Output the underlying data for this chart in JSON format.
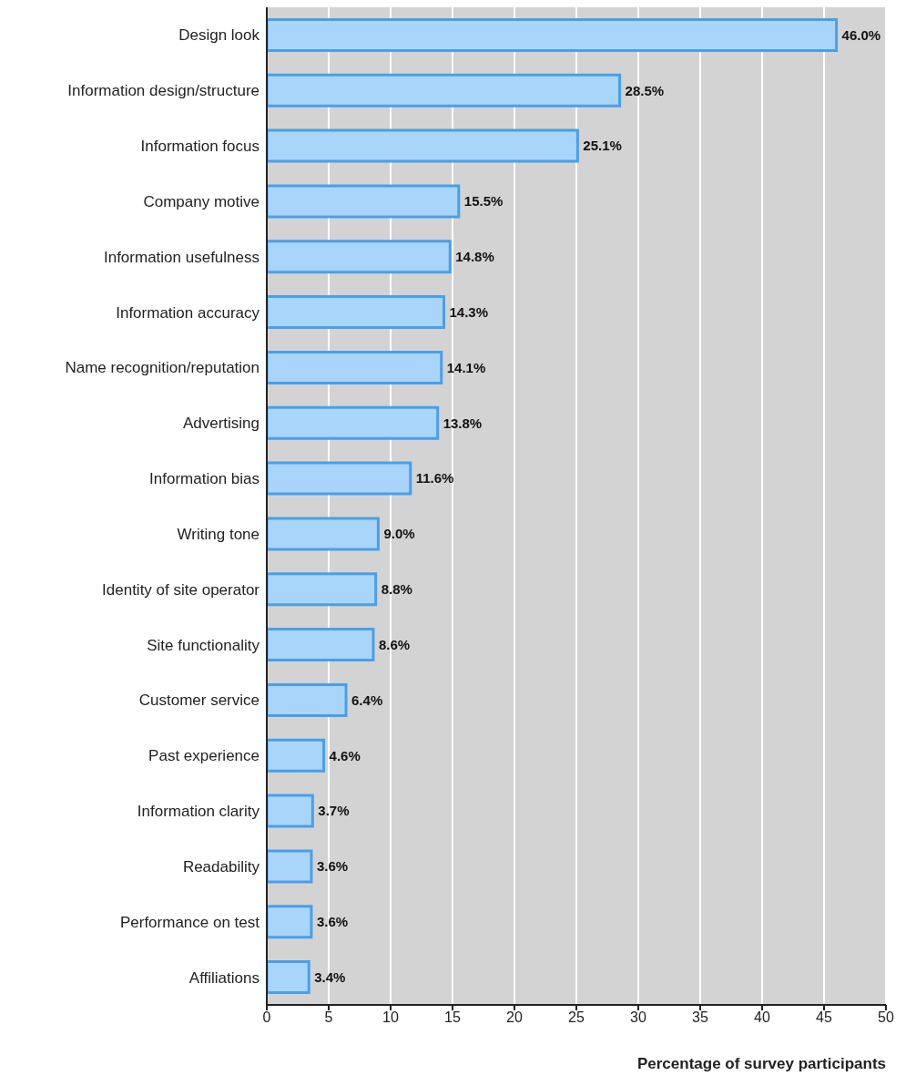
{
  "chart_data": {
    "type": "bar",
    "orientation": "horizontal",
    "xlabel": "Percentage of survey participants",
    "categories": [
      "Design look",
      "Information design/structure",
      "Information focus",
      "Company motive",
      "Information usefulness",
      "Information accuracy",
      "Name recognition/reputation",
      "Advertising",
      "Information bias",
      "Writing tone",
      "Identity of site operator",
      "Site functionality",
      "Customer service",
      "Past experience",
      "Information clarity",
      "Readability",
      "Performance on test",
      "Affiliations"
    ],
    "values": [
      46.0,
      28.5,
      25.1,
      15.5,
      14.8,
      14.3,
      14.1,
      13.8,
      11.6,
      9.0,
      8.8,
      8.6,
      6.4,
      4.6,
      3.7,
      3.6,
      3.6,
      3.4
    ],
    "value_labels": [
      "46.0%",
      "28.5%",
      "25.1%",
      "15.5%",
      "14.8%",
      "14.3%",
      "14.1%",
      "13.8%",
      "11.6%",
      "9.0%",
      "8.8%",
      "8.6%",
      "6.4%",
      "4.6%",
      "3.7%",
      "3.6%",
      "3.6%",
      "3.4%"
    ],
    "color": "#a9d5fb",
    "xlim": [
      0,
      50
    ],
    "xticks": [
      0,
      5,
      10,
      15,
      20,
      25,
      30,
      35,
      40,
      45,
      50
    ],
    "grid": "x"
  }
}
